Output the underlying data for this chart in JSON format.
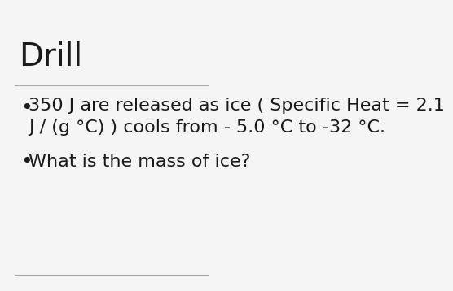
{
  "title": "Drill",
  "title_fontsize": 28,
  "title_font": "sans-serif",
  "title_color": "#1a1a1a",
  "background_color": "#f5f5f5",
  "line_color": "#aaaaaa",
  "bullet1_line1": "350 J are released as ice ( Specific Heat = 2.1",
  "bullet1_line2": "J / (g °C) ) cools from - 5.0 °C to -32 °C.",
  "bullet2": "What is the mass of ice?",
  "bullet_fontsize": 16,
  "bullet_color": "#1a1a1a",
  "bullet_font": "sans-serif"
}
